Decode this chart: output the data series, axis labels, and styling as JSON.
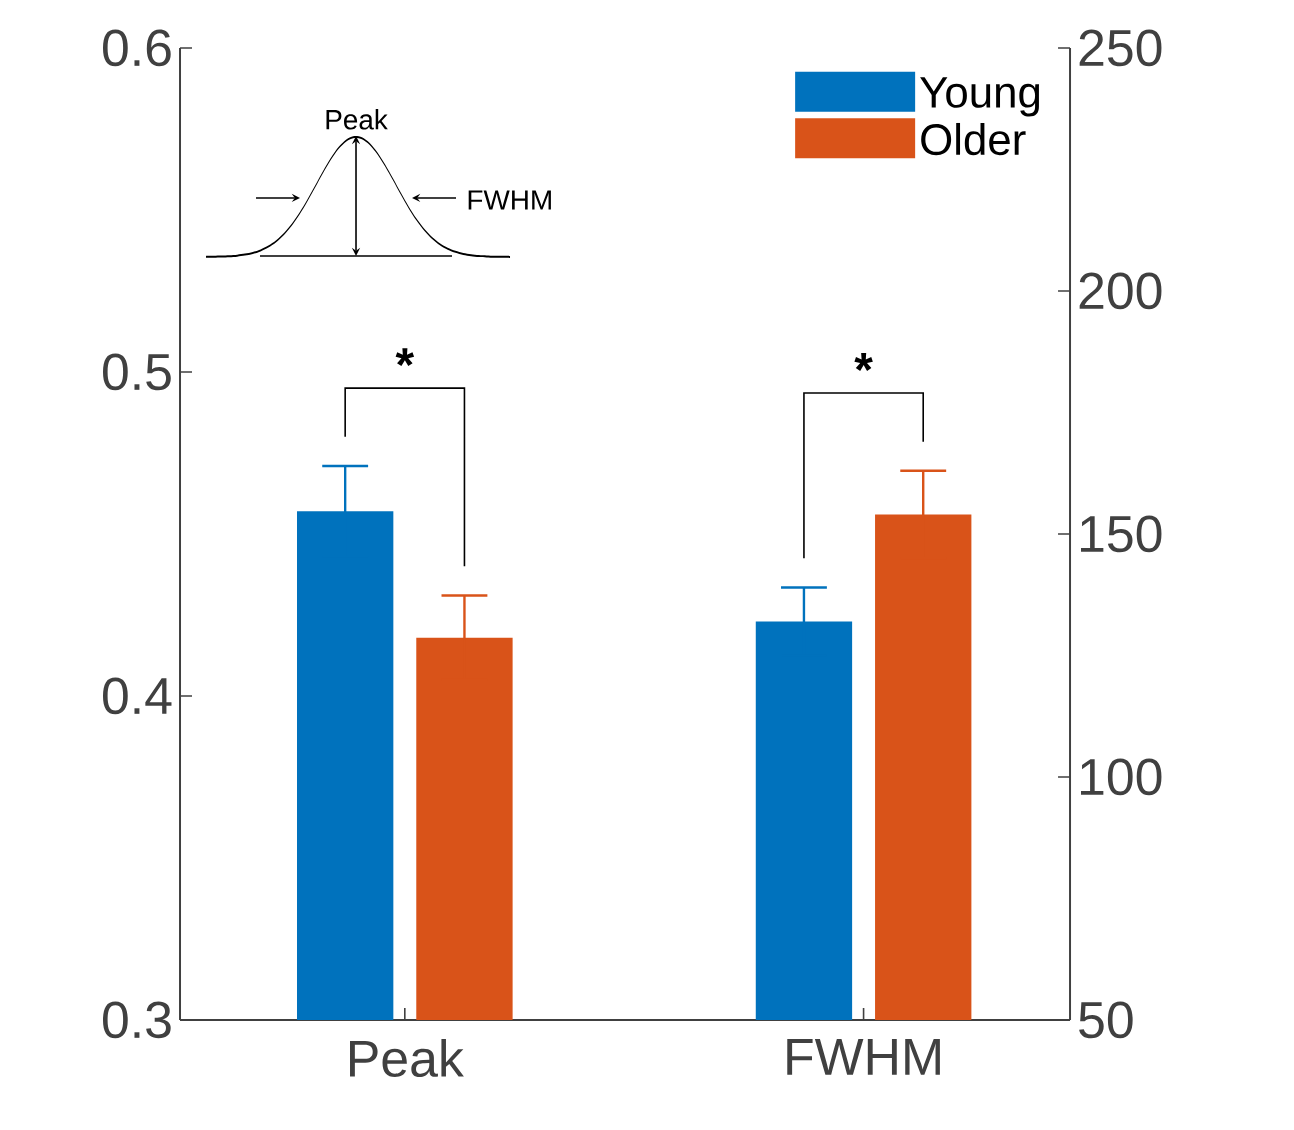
{
  "chart_data": {
    "type": "bar",
    "categories": [
      "Peak",
      "FWHM"
    ],
    "series": [
      {
        "name": "Young",
        "color": "#0072bd",
        "values": [
          0.457,
          null
        ],
        "errors": [
          0.014,
          null
        ]
      },
      {
        "name": "Older",
        "color": "#d95319",
        "values": [
          0.418,
          null
        ],
        "errors": [
          0.013,
          null
        ]
      },
      {
        "color": "#0072bd",
        "axis": "y2",
        "values": [
          null,
          132
        ],
        "errors": [
          null,
          7
        ]
      },
      {
        "color": "#d95319",
        "axis": "y2",
        "values": [
          null,
          154
        ],
        "errors": [
          null,
          9
        ]
      }
    ],
    "ylim": [
      0.3,
      0.6
    ],
    "yticks": [
      0.3,
      0.4,
      0.5,
      0.6
    ],
    "y2lim": [
      50,
      250
    ],
    "y2ticks": [
      50,
      100,
      150,
      200,
      250
    ],
    "legend": "top right",
    "annotations": [
      "Peak",
      "FWHM",
      "*",
      "*"
    ]
  }
}
